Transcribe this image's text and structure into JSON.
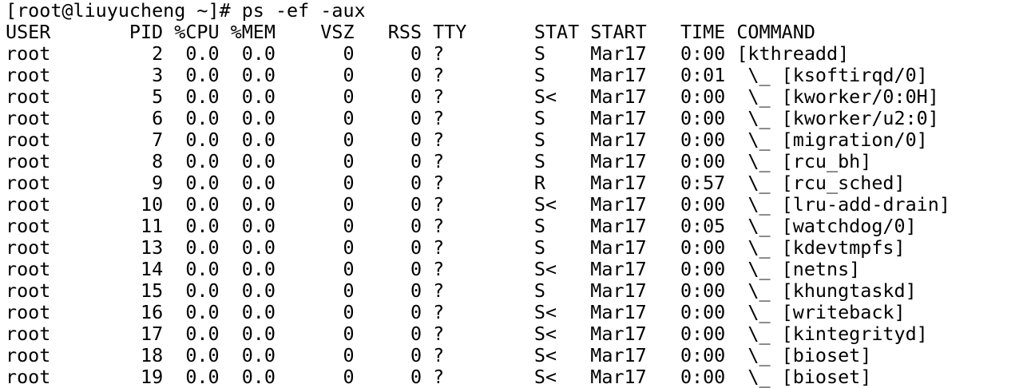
{
  "terminal": {
    "prompt": "[root@liuyucheng ~]# ps -ef -aux",
    "header": [
      "USER",
      "PID",
      "%CPU",
      "%MEM",
      "VSZ",
      "RSS",
      "TTY",
      "STAT",
      "START",
      "TIME",
      "COMMAND"
    ],
    "rows": [
      [
        "root",
        "2",
        "0.0",
        "0.0",
        "0",
        "0",
        "?",
        "S",
        "Mar17",
        "0:00",
        "[kthreadd]"
      ],
      [
        "root",
        "3",
        "0.0",
        "0.0",
        "0",
        "0",
        "?",
        "S",
        "Mar17",
        "0:01",
        " \\_ [ksoftirqd/0]"
      ],
      [
        "root",
        "5",
        "0.0",
        "0.0",
        "0",
        "0",
        "?",
        "S<",
        "Mar17",
        "0:00",
        " \\_ [kworker/0:0H]"
      ],
      [
        "root",
        "6",
        "0.0",
        "0.0",
        "0",
        "0",
        "?",
        "S",
        "Mar17",
        "0:00",
        " \\_ [kworker/u2:0]"
      ],
      [
        "root",
        "7",
        "0.0",
        "0.0",
        "0",
        "0",
        "?",
        "S",
        "Mar17",
        "0:00",
        " \\_ [migration/0]"
      ],
      [
        "root",
        "8",
        "0.0",
        "0.0",
        "0",
        "0",
        "?",
        "S",
        "Mar17",
        "0:00",
        " \\_ [rcu_bh]"
      ],
      [
        "root",
        "9",
        "0.0",
        "0.0",
        "0",
        "0",
        "?",
        "R",
        "Mar17",
        "0:57",
        " \\_ [rcu_sched]"
      ],
      [
        "root",
        "10",
        "0.0",
        "0.0",
        "0",
        "0",
        "?",
        "S<",
        "Mar17",
        "0:00",
        " \\_ [lru-add-drain]"
      ],
      [
        "root",
        "11",
        "0.0",
        "0.0",
        "0",
        "0",
        "?",
        "S",
        "Mar17",
        "0:05",
        " \\_ [watchdog/0]"
      ],
      [
        "root",
        "13",
        "0.0",
        "0.0",
        "0",
        "0",
        "?",
        "S",
        "Mar17",
        "0:00",
        " \\_ [kdevtmpfs]"
      ],
      [
        "root",
        "14",
        "0.0",
        "0.0",
        "0",
        "0",
        "?",
        "S<",
        "Mar17",
        "0:00",
        " \\_ [netns]"
      ],
      [
        "root",
        "15",
        "0.0",
        "0.0",
        "0",
        "0",
        "?",
        "S",
        "Mar17",
        "0:00",
        " \\_ [khungtaskd]"
      ],
      [
        "root",
        "16",
        "0.0",
        "0.0",
        "0",
        "0",
        "?",
        "S<",
        "Mar17",
        "0:00",
        " \\_ [writeback]"
      ],
      [
        "root",
        "17",
        "0.0",
        "0.0",
        "0",
        "0",
        "?",
        "S<",
        "Mar17",
        "0:00",
        " \\_ [kintegrityd]"
      ],
      [
        "root",
        "18",
        "0.0",
        "0.0",
        "0",
        "0",
        "?",
        "S<",
        "Mar17",
        "0:00",
        " \\_ [bioset]"
      ],
      [
        "root",
        "19",
        "0.0",
        "0.0",
        "0",
        "0",
        "?",
        "S<",
        "Mar17",
        "0:00",
        " \\_ [bioset]"
      ]
    ]
  }
}
